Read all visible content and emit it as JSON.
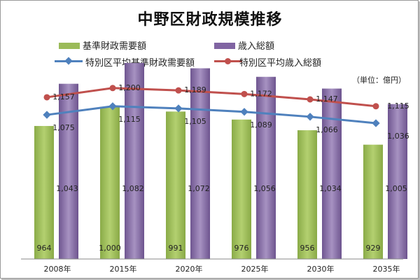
{
  "title": "中野区財政規模推移",
  "unit_note": "（単位：億円）",
  "colors": {
    "bar_green": "#9bbb59",
    "bar_purple": "#8064a2",
    "line_blue": "#4f81bd",
    "line_red": "#c0504d"
  },
  "legend": {
    "bar1": "基準財政需要額",
    "bar2": "歳入総額",
    "line1": "特別区平均基準財政需要額",
    "line2": "特別区平均歳入総額"
  },
  "chart_data": {
    "type": "bar",
    "title": "中野区財政規模推移",
    "categories": [
      "2008年",
      "2015年",
      "2020年",
      "2025年",
      "2030年",
      "2035年"
    ],
    "series": [
      {
        "name": "基準財政需要額",
        "type": "bar",
        "values": [
          964,
          1000,
          991,
          976,
          956,
          929
        ]
      },
      {
        "name": "歳入総額",
        "type": "bar",
        "values": [
          1043,
          1082,
          1072,
          1056,
          1034,
          1005
        ]
      },
      {
        "name": "特別区平均基準財政需要額",
        "type": "line",
        "values": [
          1075,
          1115,
          1105,
          1089,
          1066,
          1036
        ]
      },
      {
        "name": "特別区平均歳入総額",
        "type": "line",
        "values": [
          1157,
          1200,
          1189,
          1172,
          1147,
          1115
        ]
      }
    ],
    "grid": false,
    "legend_position": "top"
  }
}
